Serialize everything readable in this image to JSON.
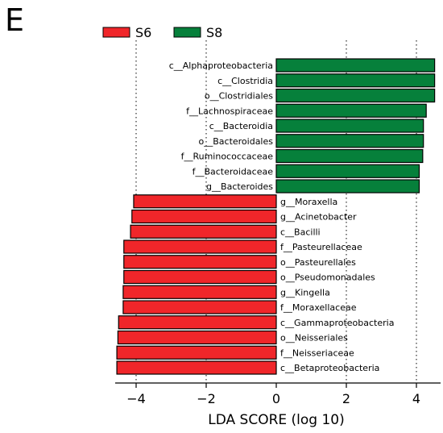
{
  "panel_label": "E",
  "colors": {
    "S6": "#f0262a",
    "S8": "#06803b",
    "edge": "#000000"
  },
  "chart_data": {
    "type": "bar",
    "orientation": "horizontal",
    "xlabel": "LDA SCORE (log 10)",
    "xlim": [
      -4.6,
      4.6
    ],
    "xticks": [
      -4,
      -2,
      0,
      2,
      4
    ],
    "xtick_labels": [
      "−4",
      "−2",
      "0",
      "2",
      "4"
    ],
    "grid": "vertical dotted lines at -4, -2, 2, 4",
    "legend": {
      "placement": "top-center",
      "entries": [
        "S6",
        "S8"
      ]
    },
    "series": [
      {
        "name": "S8",
        "categories": [
          "c__Alphaproteobacteria",
          "c__Clostridia",
          "o__Clostridiales",
          "f__Lachnospiraceae",
          "c__Bacteroidia",
          "o__Bacteroidales",
          "f__Ruminococcaceae",
          "f__Bacteroidaceae",
          "g__Bacteroides"
        ],
        "values": [
          4.52,
          4.52,
          4.52,
          4.28,
          4.2,
          4.2,
          4.18,
          4.08,
          4.08
        ]
      },
      {
        "name": "S6",
        "categories": [
          "g__Moraxella",
          "g__Acinetobacter",
          "c__Bacilli",
          "f__Pasteurellaceae",
          "o__Pasteurellales",
          "o__Pseudomonadales",
          "g__Kingella",
          "f__Moraxellaceae",
          "c__Gammaproteobacteria",
          "o__Neisseriales",
          "f__Neisseriaceae",
          "c__Betaproteobacteria"
        ],
        "values": [
          -4.07,
          -4.12,
          -4.16,
          -4.35,
          -4.35,
          -4.35,
          -4.37,
          -4.37,
          -4.5,
          -4.52,
          -4.55,
          -4.55
        ]
      }
    ]
  }
}
